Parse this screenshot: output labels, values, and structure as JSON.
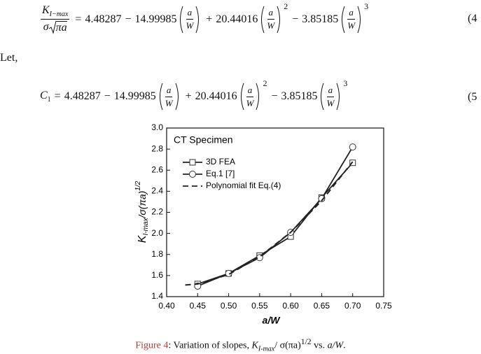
{
  "equations": [
    {
      "lhs": {
        "numerator": "K",
        "subscript": "I−max",
        "denominator_prefix": "σ",
        "radicand": "πa"
      },
      "relation": "=",
      "rhs": {
        "constant": "4.48287",
        "terms": [
          {
            "sign": "−",
            "coefficient": "14.99985"
          },
          {
            "sign": "+",
            "coefficient": "20.44016",
            "power": "2"
          },
          {
            "sign": "−",
            "coefficient": "3.85185",
            "power": "3"
          }
        ],
        "ratio": {
          "numerator": "a",
          "denominator": "W"
        }
      },
      "number": "(4"
    },
    {
      "lhs": {
        "symbol": "C",
        "subscript": "1"
      },
      "relation": "=",
      "rhs": {
        "constant": "4.48287",
        "terms": [
          {
            "sign": "−",
            "coefficient": "14.99985"
          },
          {
            "sign": "+",
            "coefficient": "20.44016",
            "power": "2"
          },
          {
            "sign": "−",
            "coefficient": "3.85185",
            "power": "3"
          }
        ],
        "ratio": {
          "numerator": "a",
          "denominator": "W"
        }
      },
      "number": "(5"
    }
  ],
  "intro": "Let,",
  "chart_data": {
    "type": "line",
    "title": "CT Specimen",
    "x_label": "a/W",
    "y_label": {
      "main": "K",
      "subscript": "I-max",
      "rest": "/σ(πa)",
      "superscript": "1/2"
    },
    "xlim": [
      0.4,
      0.75
    ],
    "ylim": [
      1.4,
      3.0
    ],
    "xticks": [
      {
        "value": 0.4,
        "label": "0.40"
      },
      {
        "value": 0.45,
        "label": "0.45"
      },
      {
        "value": 0.5,
        "label": "0.50"
      },
      {
        "value": 0.55,
        "label": "0.55"
      },
      {
        "value": 0.6,
        "label": "0.60"
      },
      {
        "value": 0.65,
        "label": "0.65"
      },
      {
        "value": 0.7,
        "label": "0.70"
      },
      {
        "value": 0.75,
        "label": "0.75"
      }
    ],
    "yticks": [
      1.4,
      1.6,
      1.8,
      {
        "value": 2,
        "label": "2.0"
      },
      2.2,
      2.4,
      2.6,
      2.8,
      {
        "value": 3,
        "label": "3.0"
      }
    ],
    "series": [
      {
        "name": "3D FEA",
        "color": "#222222",
        "marker": "square",
        "line_style": "solid",
        "x": [
          0.45,
          0.5,
          0.55,
          0.6,
          0.65,
          0.7
        ],
        "values": [
          1.52,
          1.62,
          1.79,
          1.97,
          2.34,
          2.67
        ]
      },
      {
        "name": "Eq.1 [7]",
        "color": "#222222",
        "marker": "circle",
        "line_style": "solid",
        "x": [
          0.45,
          0.5,
          0.55,
          0.6,
          0.65,
          0.7
        ],
        "values": [
          1.5,
          1.62,
          1.77,
          2.01,
          2.33,
          2.82
        ]
      },
      {
        "name": "Polynomial fit Eq.(4)",
        "color": "#222222",
        "marker": "none",
        "line_style": "dashed",
        "x": [
          0.43,
          0.45,
          0.5,
          0.55,
          0.6,
          0.65,
          0.7
        ],
        "values": [
          1.51,
          1.52,
          1.61,
          1.78,
          2.01,
          2.31,
          2.68
        ]
      }
    ]
  },
  "caption": {
    "label": "Figure 4",
    "text": ": Variation of slopes, ",
    "symbol": "K",
    "subscript": "I-max",
    "rest": "/ σ(πa)",
    "superscript": "1/2",
    "tail": " vs. ",
    "variable": "a/W",
    "end": "."
  }
}
